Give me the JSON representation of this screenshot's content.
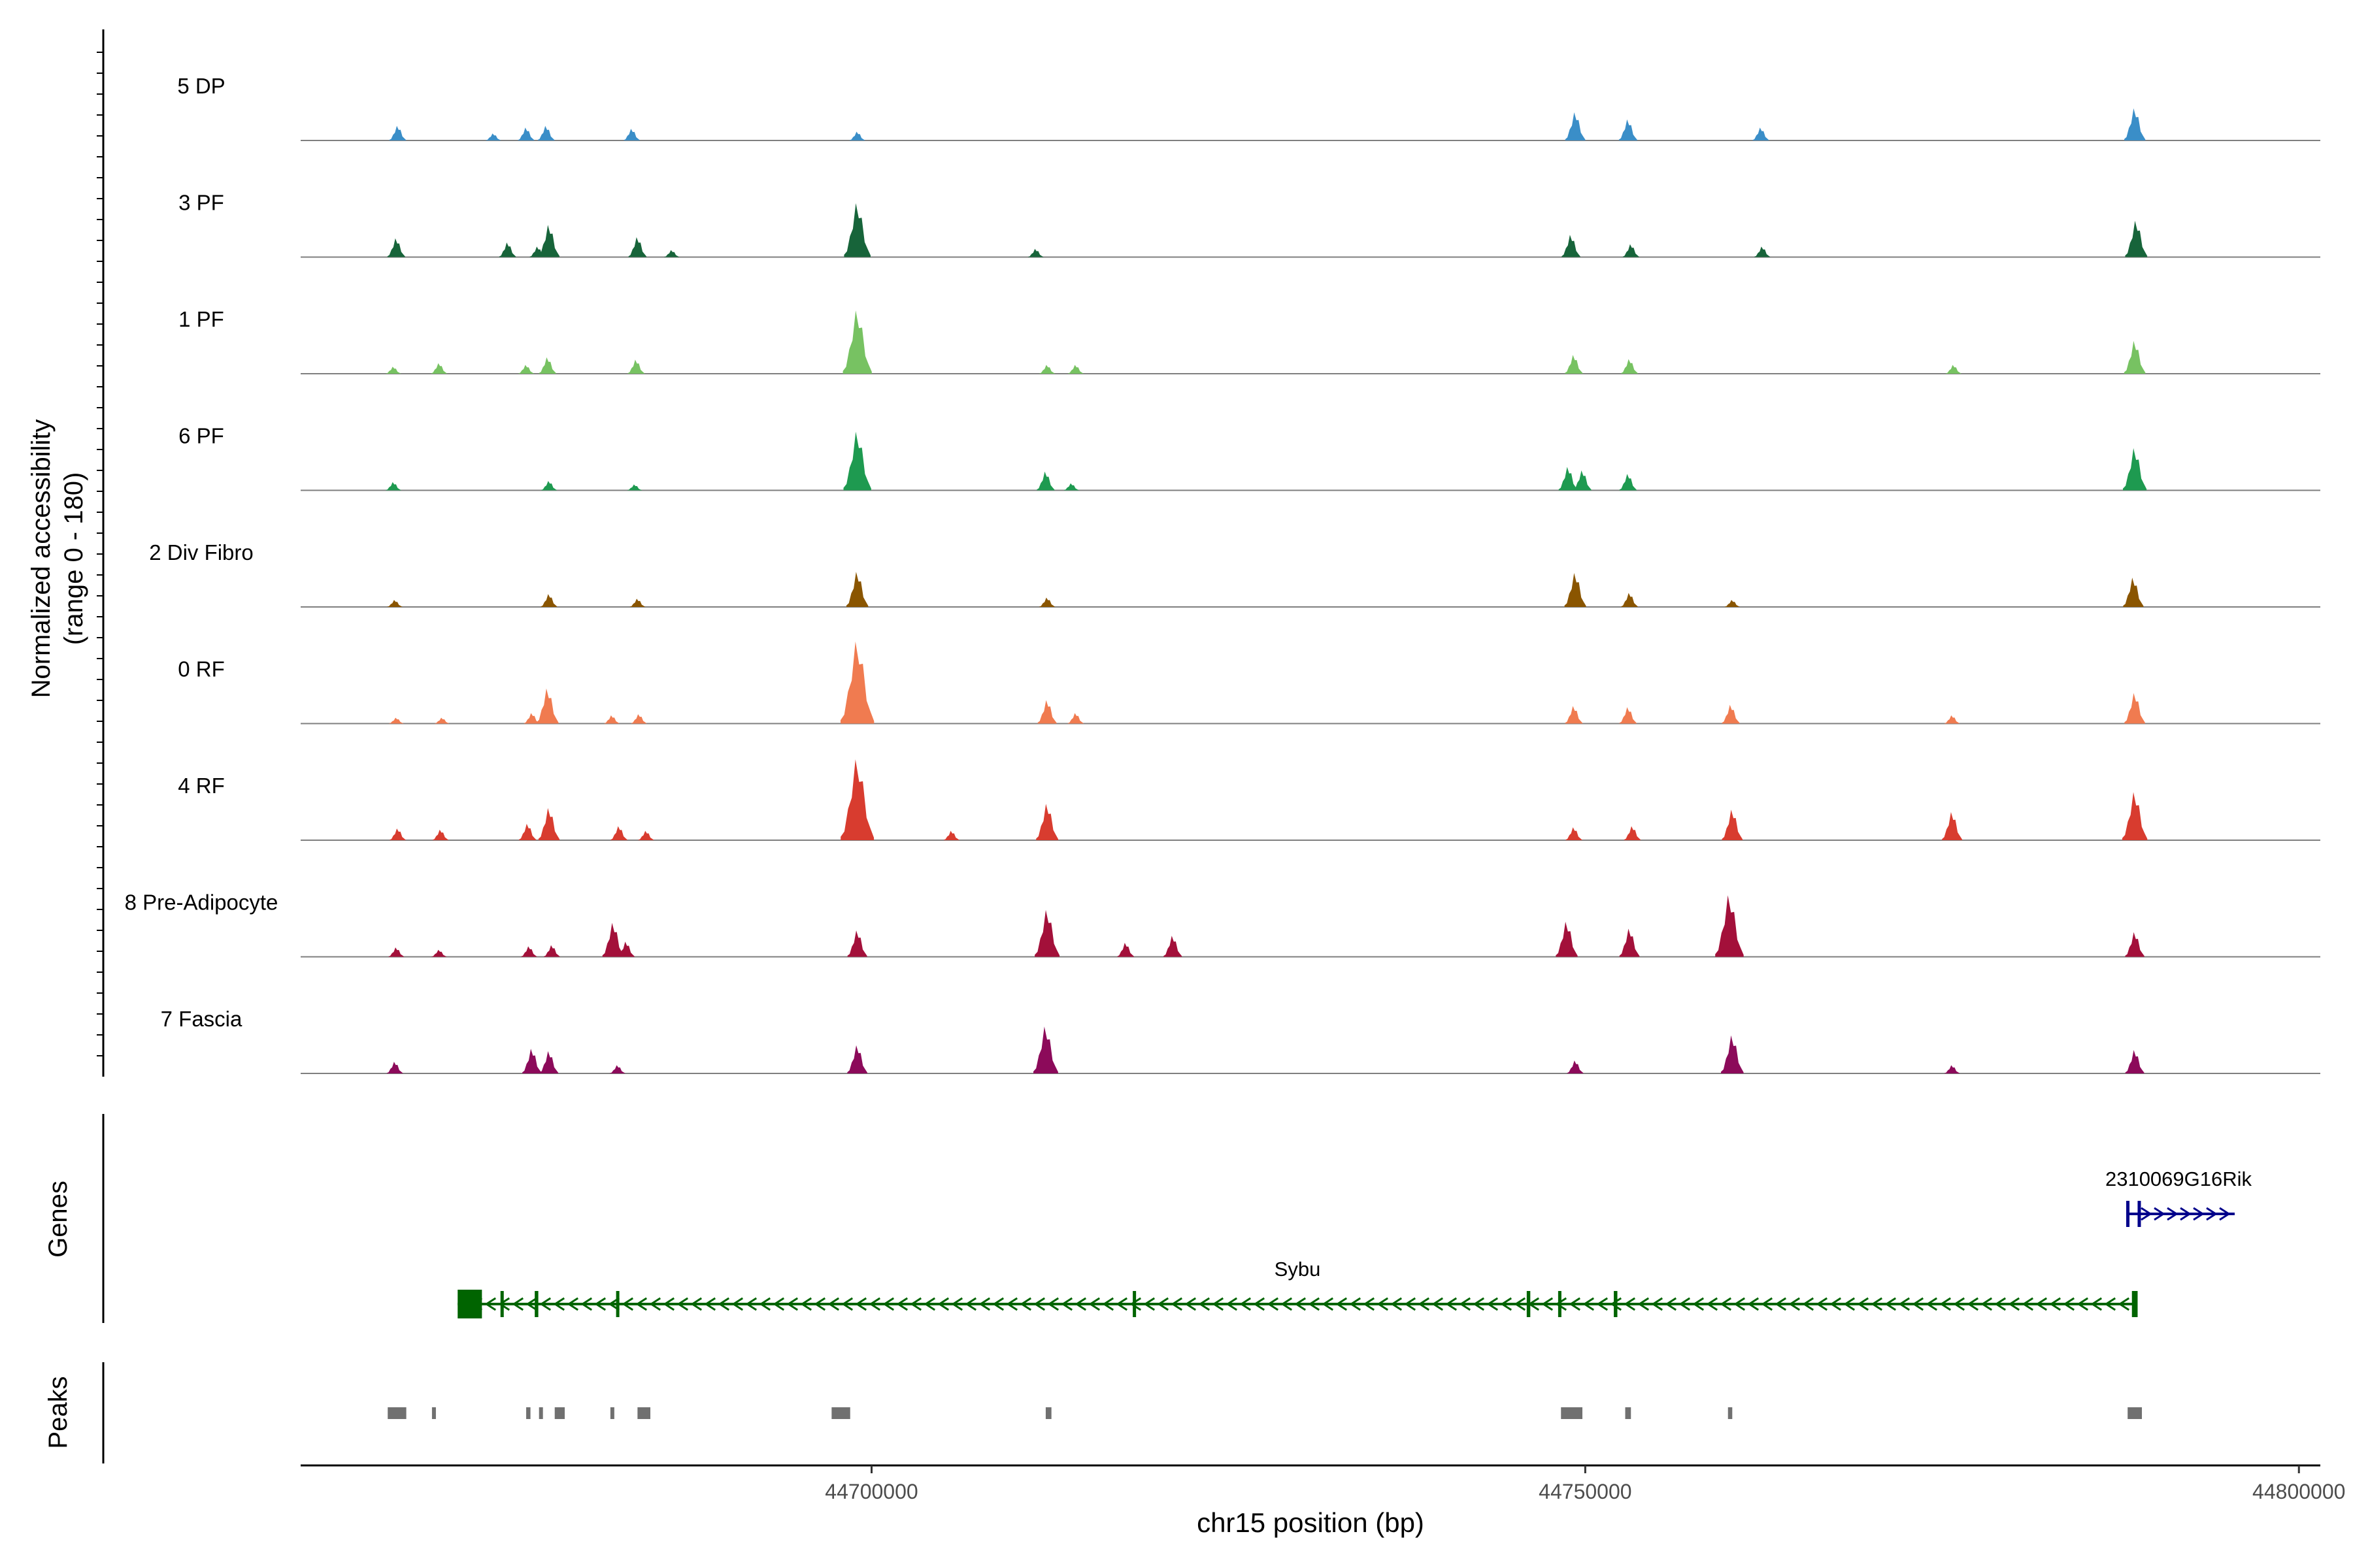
{
  "chart_data": {
    "type": "area",
    "chromosome": "chr15",
    "xlabel": "chr15 position (bp)",
    "ylabel": "Normalized accessibility",
    "ylabel_range": "(range 0 - 180)",
    "ylim": [
      0,
      180
    ],
    "xlim": [
      44660000,
      44801500
    ],
    "x_ticks": [
      {
        "value": 44700000,
        "label": "44700000"
      },
      {
        "value": 44750000,
        "label": "44750000"
      },
      {
        "value": 44800000,
        "label": "44800000"
      }
    ],
    "section_labels": {
      "genes": "Genes",
      "peaks": "Peaks"
    },
    "series": [
      {
        "name": "5 DP",
        "color": "#3a8ec8",
        "peaks": [
          [
            44666800,
            25
          ],
          [
            44673500,
            12
          ],
          [
            44675800,
            22
          ],
          [
            44677200,
            25
          ],
          [
            44683200,
            20
          ],
          [
            44699000,
            15
          ],
          [
            44749300,
            48
          ],
          [
            44753000,
            36
          ],
          [
            44762300,
            22
          ],
          [
            44788500,
            55
          ]
        ]
      },
      {
        "name": "3 PF",
        "color": "#17643a",
        "peaks": [
          [
            44666700,
            32
          ],
          [
            44674500,
            25
          ],
          [
            44676600,
            18
          ],
          [
            44677400,
            55
          ],
          [
            44683600,
            34
          ],
          [
            44699000,
            92
          ],
          [
            44686000,
            12
          ],
          [
            44711500,
            14
          ],
          [
            44749000,
            38
          ],
          [
            44753200,
            22
          ],
          [
            44762400,
            18
          ],
          [
            44788600,
            62
          ]
        ]
      },
      {
        "name": "1 PF",
        "color": "#77c262",
        "peaks": [
          [
            44666500,
            12
          ],
          [
            44669700,
            18
          ],
          [
            44675800,
            15
          ],
          [
            44677300,
            28
          ],
          [
            44683500,
            24
          ],
          [
            44699000,
            108
          ],
          [
            44712300,
            15
          ],
          [
            44714300,
            15
          ],
          [
            44749200,
            32
          ],
          [
            44753100,
            25
          ],
          [
            44775800,
            15
          ],
          [
            44788500,
            56
          ]
        ]
      },
      {
        "name": "6 PF",
        "color": "#1e9a50",
        "peaks": [
          [
            44666500,
            14
          ],
          [
            44677400,
            16
          ],
          [
            44683400,
            10
          ],
          [
            44699000,
            100
          ],
          [
            44712200,
            32
          ],
          [
            44714000,
            12
          ],
          [
            44748800,
            40
          ],
          [
            44749800,
            34
          ],
          [
            44753000,
            28
          ],
          [
            44788500,
            72
          ]
        ]
      },
      {
        "name": "2 Div Fibro",
        "color": "#8a5500",
        "peaks": [
          [
            44666600,
            12
          ],
          [
            44677400,
            22
          ],
          [
            44683600,
            14
          ],
          [
            44699000,
            60
          ],
          [
            44712300,
            16
          ],
          [
            44749300,
            58
          ],
          [
            44753100,
            24
          ],
          [
            44760300,
            12
          ],
          [
            44788400,
            50
          ]
        ]
      },
      {
        "name": "0 RF",
        "color": "#f07b50",
        "peaks": [
          [
            44666700,
            10
          ],
          [
            44669900,
            10
          ],
          [
            44676200,
            18
          ],
          [
            44677300,
            60
          ],
          [
            44681800,
            14
          ],
          [
            44683700,
            16
          ],
          [
            44699000,
            140
          ],
          [
            44712300,
            40
          ],
          [
            44714300,
            18
          ],
          [
            44749200,
            30
          ],
          [
            44753000,
            28
          ],
          [
            44760200,
            32
          ],
          [
            44775700,
            14
          ],
          [
            44788500,
            52
          ]
        ]
      },
      {
        "name": "4 RF",
        "color": "#d83c2f",
        "peaks": [
          [
            44666800,
            20
          ],
          [
            44669800,
            18
          ],
          [
            44675900,
            28
          ],
          [
            44677400,
            55
          ],
          [
            44682300,
            24
          ],
          [
            44684200,
            16
          ],
          [
            44699000,
            138
          ],
          [
            44705600,
            16
          ],
          [
            44712300,
            62
          ],
          [
            44749200,
            22
          ],
          [
            44753300,
            24
          ],
          [
            44760300,
            52
          ],
          [
            44775700,
            48
          ],
          [
            44788500,
            82
          ]
        ]
      },
      {
        "name": "8 Pre-Adipocyte",
        "color": "#a3103a",
        "peaks": [
          [
            44666700,
            16
          ],
          [
            44669700,
            12
          ],
          [
            44676000,
            18
          ],
          [
            44677600,
            20
          ],
          [
            44681900,
            58
          ],
          [
            44682800,
            26
          ],
          [
            44699000,
            45
          ],
          [
            44712300,
            80
          ],
          [
            44717800,
            24
          ],
          [
            44721100,
            36
          ],
          [
            44748700,
            60
          ],
          [
            44753100,
            48
          ],
          [
            44760100,
            105
          ],
          [
            44788500,
            42
          ]
        ]
      },
      {
        "name": "7 Fascia",
        "color": "#8c0a5a",
        "peaks": [
          [
            44666600,
            20
          ],
          [
            44676200,
            42
          ],
          [
            44677400,
            38
          ],
          [
            44682200,
            14
          ],
          [
            44699000,
            48
          ],
          [
            44712200,
            80
          ],
          [
            44749300,
            22
          ],
          [
            44760300,
            65
          ],
          [
            44775700,
            14
          ],
          [
            44788500,
            40
          ]
        ]
      }
    ],
    "genes": [
      {
        "name": "Sybu",
        "strand": "-",
        "start": 44671000,
        "end": 44788500,
        "color": "#006400",
        "exons": [
          [
            44671000,
            44672700
          ],
          [
            44674000,
            44674200
          ],
          [
            44676400,
            44676650
          ],
          [
            44682100,
            44682300
          ],
          [
            44718300,
            44718500
          ],
          [
            44745900,
            44746150
          ],
          [
            44748100,
            44748250
          ],
          [
            44752000,
            44752250
          ],
          [
            44788300,
            44788700
          ]
        ]
      },
      {
        "name": "2310069G16Rik",
        "strand": "+",
        "start": 44787900,
        "end": 44795500,
        "color": "#00008b",
        "exons": [
          [
            44787900,
            44788100
          ],
          [
            44788700,
            44788850
          ]
        ]
      }
    ],
    "peaks_track": [
      [
        44666100,
        44667400
      ],
      [
        44669200,
        44669400
      ],
      [
        44675800,
        44676100
      ],
      [
        44676700,
        44676900
      ],
      [
        44677800,
        44678500
      ],
      [
        44681700,
        44681950
      ],
      [
        44683600,
        44684500
      ],
      [
        44697200,
        44698500
      ],
      [
        44712200,
        44712600
      ],
      [
        44748300,
        44749800
      ],
      [
        44752800,
        44753200
      ],
      [
        44760000,
        44760300
      ],
      [
        44788000,
        44789000
      ]
    ]
  }
}
